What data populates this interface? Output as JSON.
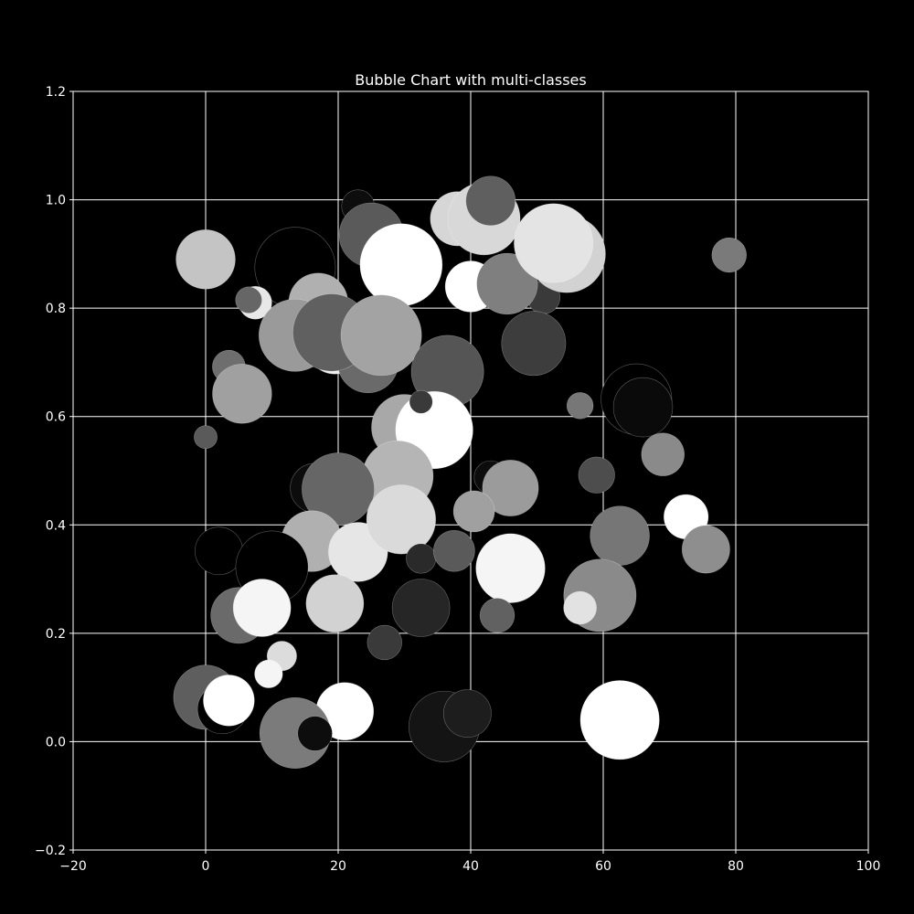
{
  "chart_data": {
    "type": "scatter",
    "title": "Bubble Chart with multi-classes",
    "xlabel": "",
    "ylabel": "",
    "xlim": [
      -20,
      100
    ],
    "ylim": [
      -0.2,
      1.2
    ],
    "xticks": [
      -20,
      0,
      20,
      40,
      60,
      80,
      100
    ],
    "yticks": [
      -0.2,
      0.0,
      0.2,
      0.4,
      0.6,
      0.8,
      1.0,
      1.2
    ],
    "xtick_labels": [
      "−20",
      "0",
      "20",
      "40",
      "60",
      "80",
      "100"
    ],
    "ytick_labels": [
      "−0.2",
      "0.0",
      "0.2",
      "0.4",
      "0.6",
      "0.8",
      "1.0",
      "1.2"
    ],
    "grid": true,
    "background": "#000000",
    "foreground": "#ffffff",
    "bubble_size_unit": "relative",
    "points": [
      {
        "x": 0,
        "y": 0.89,
        "size": 36,
        "color": "#c4c4c4"
      },
      {
        "x": 13.5,
        "y": 0.875,
        "size": 49,
        "color": "#000000"
      },
      {
        "x": 23,
        "y": 0.988,
        "size": 20,
        "color": "#0d0d0d"
      },
      {
        "x": 25,
        "y": 0.935,
        "size": 39,
        "color": "#5a5a5a"
      },
      {
        "x": 29.5,
        "y": 0.88,
        "size": 50,
        "color": "#ffffff"
      },
      {
        "x": 38,
        "y": 0.965,
        "size": 33,
        "color": "#d6d6d6"
      },
      {
        "x": 42,
        "y": 0.965,
        "size": 44,
        "color": "#d8d8d8"
      },
      {
        "x": 43,
        "y": 0.998,
        "size": 30,
        "color": "#5f5f5f"
      },
      {
        "x": 40,
        "y": 0.84,
        "size": 31,
        "color": "#ffffff"
      },
      {
        "x": 51,
        "y": 0.82,
        "size": 20,
        "color": "#3a3a3a"
      },
      {
        "x": 45.5,
        "y": 0.845,
        "size": 37,
        "color": "#7f7f7f"
      },
      {
        "x": 54.5,
        "y": 0.9,
        "size": 47,
        "color": "#d2d2d2"
      },
      {
        "x": 52.5,
        "y": 0.92,
        "size": 48,
        "color": "#e4e4e4"
      },
      {
        "x": 79,
        "y": 0.898,
        "size": 21,
        "color": "#7a7a7a"
      },
      {
        "x": 7.5,
        "y": 0.81,
        "size": 20,
        "color": "#e8e8e8"
      },
      {
        "x": 6.5,
        "y": 0.815,
        "size": 16,
        "color": "#666666"
      },
      {
        "x": 17,
        "y": 0.81,
        "size": 36,
        "color": "#b0b0b0"
      },
      {
        "x": 13.5,
        "y": 0.75,
        "size": 44,
        "color": "#9a9a9a"
      },
      {
        "x": 19.5,
        "y": 0.73,
        "size": 34,
        "color": "#f0f0f0"
      },
      {
        "x": 24.5,
        "y": 0.7,
        "size": 37,
        "color": "#6a6a6a"
      },
      {
        "x": 19,
        "y": 0.755,
        "size": 47,
        "color": "#606060"
      },
      {
        "x": 26.5,
        "y": 0.75,
        "size": 49,
        "color": "#a3a3a3"
      },
      {
        "x": 36.5,
        "y": 0.683,
        "size": 44,
        "color": "#555555"
      },
      {
        "x": 49.5,
        "y": 0.735,
        "size": 39,
        "color": "#3d3d3d"
      },
      {
        "x": 3.5,
        "y": 0.692,
        "size": 20,
        "color": "#6e6e6e"
      },
      {
        "x": 5.5,
        "y": 0.642,
        "size": 36,
        "color": "#a0a0a0"
      },
      {
        "x": 0,
        "y": 0.562,
        "size": 14,
        "color": "#5a5a5a"
      },
      {
        "x": 65,
        "y": 0.632,
        "size": 43,
        "color": "#000000"
      },
      {
        "x": 66,
        "y": 0.617,
        "size": 36,
        "color": "#0a0a0a"
      },
      {
        "x": 56.5,
        "y": 0.62,
        "size": 16,
        "color": "#777777"
      },
      {
        "x": 30,
        "y": 0.58,
        "size": 40,
        "color": "#a8a8a8"
      },
      {
        "x": 34.5,
        "y": 0.575,
        "size": 47,
        "color": "#ffffff"
      },
      {
        "x": 32.5,
        "y": 0.627,
        "size": 14,
        "color": "#3a3a3a"
      },
      {
        "x": 69,
        "y": 0.53,
        "size": 26,
        "color": "#8a8a8a"
      },
      {
        "x": 59,
        "y": 0.492,
        "size": 22,
        "color": "#4d4d4d"
      },
      {
        "x": 16.5,
        "y": 0.468,
        "size": 30,
        "color": "#0c0c0c"
      },
      {
        "x": 29,
        "y": 0.49,
        "size": 43,
        "color": "#b5b5b5"
      },
      {
        "x": 20,
        "y": 0.466,
        "size": 44,
        "color": "#666666"
      },
      {
        "x": 43,
        "y": 0.488,
        "size": 20,
        "color": "#0c0c0c"
      },
      {
        "x": 46,
        "y": 0.468,
        "size": 34,
        "color": "#9b9b9b"
      },
      {
        "x": 40.5,
        "y": 0.425,
        "size": 25,
        "color": "#a0a0a0"
      },
      {
        "x": 72.5,
        "y": 0.415,
        "size": 27,
        "color": "#ffffff"
      },
      {
        "x": 16,
        "y": 0.37,
        "size": 37,
        "color": "#b0b0b0"
      },
      {
        "x": 23,
        "y": 0.35,
        "size": 36,
        "color": "#e6e6e6"
      },
      {
        "x": 29.5,
        "y": 0.41,
        "size": 42,
        "color": "#dadada"
      },
      {
        "x": 62.5,
        "y": 0.38,
        "size": 36,
        "color": "#767676"
      },
      {
        "x": 2,
        "y": 0.352,
        "size": 29,
        "color": "#000000"
      },
      {
        "x": 10,
        "y": 0.322,
        "size": 44,
        "color": "#000000"
      },
      {
        "x": 32.5,
        "y": 0.338,
        "size": 18,
        "color": "#2a2a2a"
      },
      {
        "x": 37.5,
        "y": 0.352,
        "size": 25,
        "color": "#5a5a5a"
      },
      {
        "x": 46,
        "y": 0.32,
        "size": 42,
        "color": "#f5f5f5"
      },
      {
        "x": 75.5,
        "y": 0.355,
        "size": 29,
        "color": "#8e8e8e"
      },
      {
        "x": 5,
        "y": 0.233,
        "size": 34,
        "color": "#6a6a6a"
      },
      {
        "x": 8.5,
        "y": 0.247,
        "size": 35,
        "color": "#f5f5f5"
      },
      {
        "x": 19.5,
        "y": 0.255,
        "size": 35,
        "color": "#d2d2d2"
      },
      {
        "x": 32.5,
        "y": 0.247,
        "size": 35,
        "color": "#262626"
      },
      {
        "x": 44,
        "y": 0.233,
        "size": 21,
        "color": "#616161"
      },
      {
        "x": 59.5,
        "y": 0.27,
        "size": 44,
        "color": "#8a8a8a"
      },
      {
        "x": 56.5,
        "y": 0.247,
        "size": 20,
        "color": "#e2e2e2"
      },
      {
        "x": 27,
        "y": 0.183,
        "size": 21,
        "color": "#3a3a3a"
      },
      {
        "x": 11.5,
        "y": 0.158,
        "size": 18,
        "color": "#dcdcdc"
      },
      {
        "x": 9.5,
        "y": 0.125,
        "size": 17,
        "color": "#f5f5f5"
      },
      {
        "x": 0,
        "y": 0.082,
        "size": 39,
        "color": "#5e5e5e"
      },
      {
        "x": 2.5,
        "y": 0.06,
        "size": 30,
        "color": "#000000"
      },
      {
        "x": 3.5,
        "y": 0.076,
        "size": 31,
        "color": "#ffffff"
      },
      {
        "x": 21,
        "y": 0.056,
        "size": 35,
        "color": "#ffffff"
      },
      {
        "x": 13.5,
        "y": 0.016,
        "size": 43,
        "color": "#7b7b7b"
      },
      {
        "x": 16.5,
        "y": 0.015,
        "size": 21,
        "color": "#0d0d0d"
      },
      {
        "x": 36,
        "y": 0.028,
        "size": 43,
        "color": "#141414"
      },
      {
        "x": 39.5,
        "y": 0.052,
        "size": 29,
        "color": "#1d1d1d"
      },
      {
        "x": 62.5,
        "y": 0.04,
        "size": 48,
        "color": "#ffffff"
      }
    ]
  }
}
